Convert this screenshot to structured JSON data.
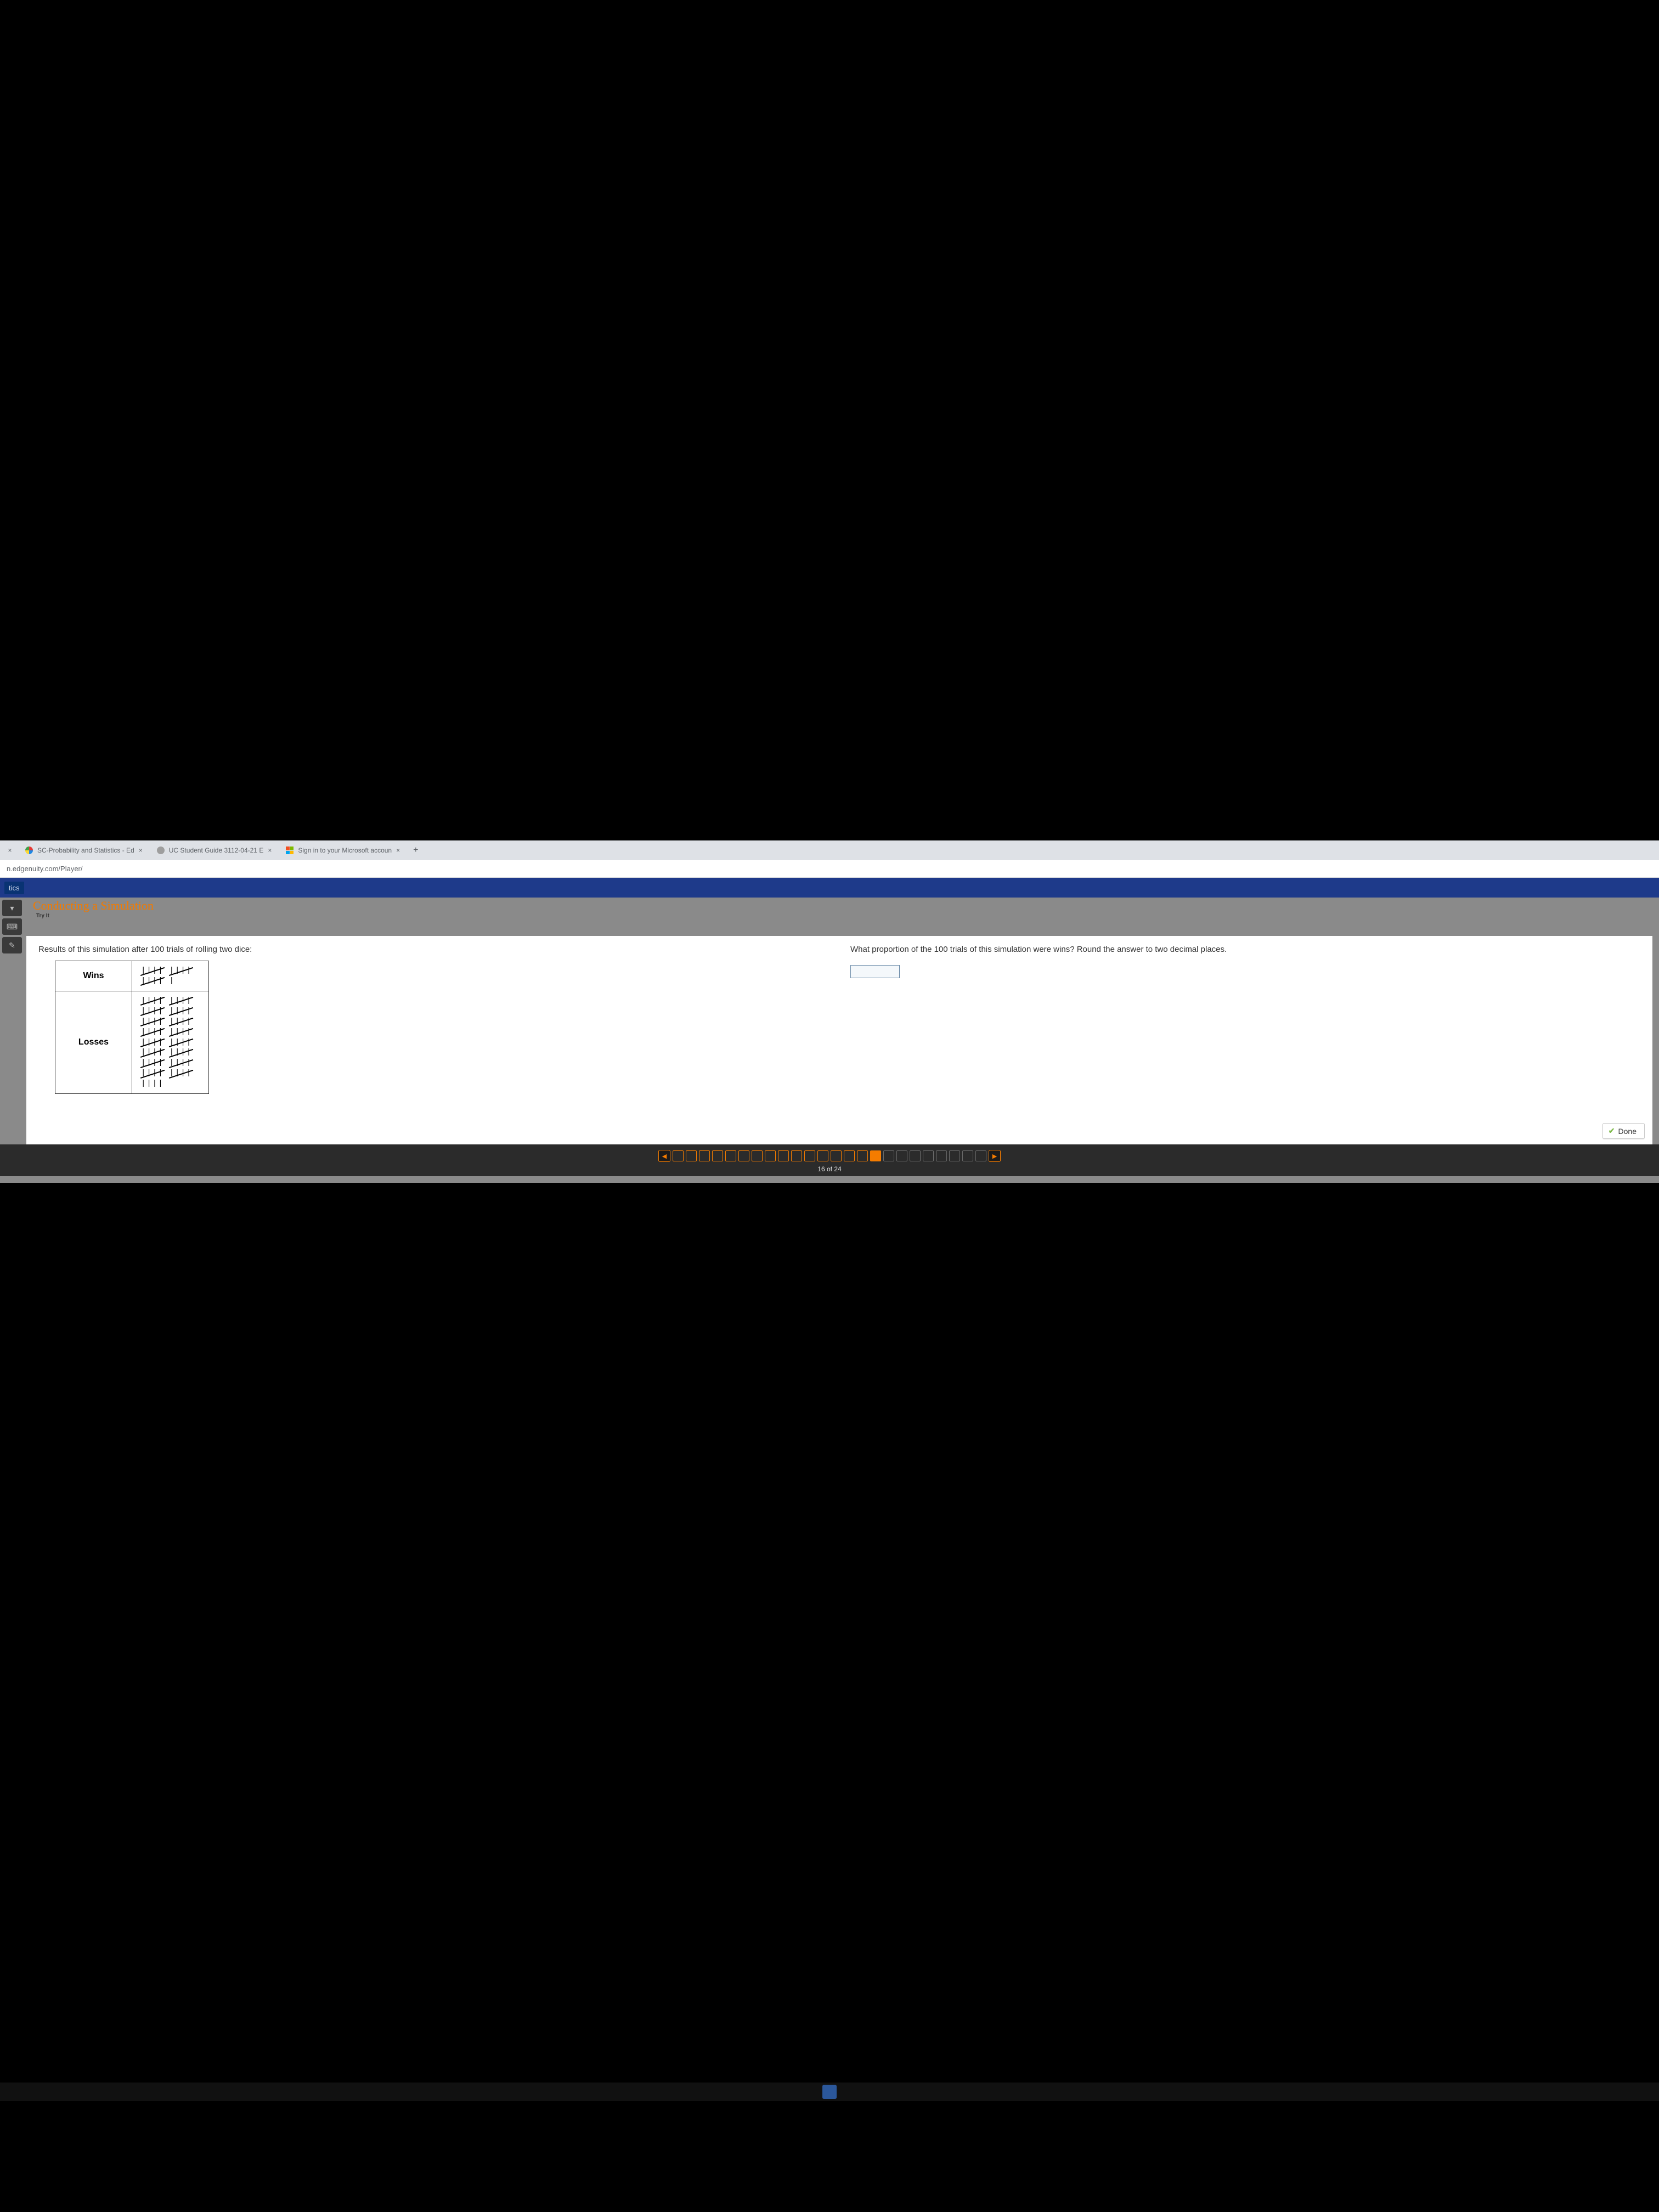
{
  "browser": {
    "tabs": [
      {
        "label": "SC-Probability and Statistics - Ed"
      },
      {
        "label": "UC Student Guide 3112-04-21 E"
      },
      {
        "label": "Sign in to your Microsoft accoun"
      }
    ],
    "url": "n.edgenuity.com/Player/"
  },
  "app": {
    "sidebar_label": "tics",
    "lesson_title_partial": "Conducting a Simulation",
    "try_it_label": "Try It"
  },
  "question": {
    "left_prompt": "Results of this simulation after 100 trials of rolling two dice:",
    "right_prompt": "What proportion of the 100 trials of this simulation were wins? Round the answer to two decimal places.",
    "table": {
      "rows": [
        {
          "label": "Wins",
          "tally_fives": 3,
          "tally_ones": 1,
          "value": 16
        },
        {
          "label": "Losses",
          "tally_fives": 16,
          "tally_ones": 4,
          "value": 84
        }
      ]
    },
    "answer_value": "",
    "done_label": "Done"
  },
  "progress": {
    "current": 16,
    "total": 24,
    "counter": "16 of 24"
  },
  "style": {
    "accent": "#f57c00",
    "header_blue": "#1e3a8a",
    "panel_bg": "#ffffff",
    "content_bg": "#8a8a8a",
    "text": "#333333",
    "input_border": "#6a8aa8",
    "done_check": "#7fba4c"
  }
}
